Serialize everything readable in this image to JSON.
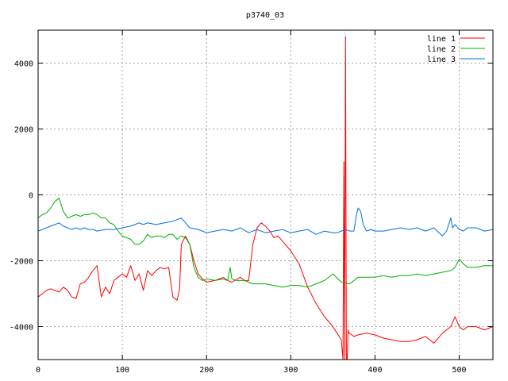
{
  "chart_data": {
    "type": "line",
    "title": "p3740_03",
    "xlabel": "",
    "ylabel": "",
    "xlim": [
      0,
      540
    ],
    "ylim": [
      -5000,
      5000
    ],
    "xticks": [
      0,
      100,
      200,
      300,
      400,
      500
    ],
    "yticks": [
      -4000,
      -2000,
      0,
      2000,
      4000
    ],
    "grid": true,
    "legend_position": "top-right",
    "series": [
      {
        "name": "line 1",
        "color": "#ff0000",
        "x": [
          0,
          5,
          10,
          15,
          20,
          25,
          30,
          35,
          40,
          45,
          50,
          55,
          60,
          65,
          70,
          75,
          80,
          85,
          90,
          95,
          100,
          105,
          110,
          115,
          120,
          125,
          130,
          135,
          140,
          145,
          150,
          155,
          160,
          165,
          168,
          170,
          172,
          175,
          180,
          185,
          190,
          195,
          200,
          210,
          220,
          230,
          240,
          245,
          250,
          255,
          260,
          265,
          270,
          275,
          280,
          285,
          290,
          300,
          310,
          320,
          330,
          340,
          350,
          355,
          360,
          362,
          363,
          364,
          365,
          366,
          367,
          368,
          369,
          370,
          375,
          380,
          390,
          400,
          410,
          420,
          430,
          440,
          450,
          460,
          470,
          480,
          490,
          495,
          500,
          505,
          510,
          520,
          530,
          540
        ],
        "y": [
          -3100,
          -3000,
          -2900,
          -2850,
          -2900,
          -2950,
          -2800,
          -2900,
          -3100,
          -3150,
          -2700,
          -2650,
          -2500,
          -2300,
          -2150,
          -3100,
          -2800,
          -3000,
          -2600,
          -2500,
          -2400,
          -2500,
          -2150,
          -2600,
          -2400,
          -2900,
          -2300,
          -2450,
          -2300,
          -2200,
          -2250,
          -2200,
          -3100,
          -3200,
          -2850,
          -1500,
          -1400,
          -1250,
          -1500,
          -2000,
          -2400,
          -2550,
          -2650,
          -2600,
          -2550,
          -2650,
          -2500,
          -2600,
          -2600,
          -1500,
          -1000,
          -850,
          -950,
          -1100,
          -1300,
          -1250,
          -1400,
          -1700,
          -2100,
          -2800,
          -3300,
          -3700,
          -4000,
          -4200,
          -4400,
          -5000,
          1000,
          -5000,
          4800,
          -5000,
          -5000,
          -4100,
          -4200,
          -4200,
          -4300,
          -4250,
          -4200,
          -4250,
          -4350,
          -4400,
          -4450,
          -4450,
          -4400,
          -4300,
          -4500,
          -4200,
          -4000,
          -3700,
          -4000,
          -4100,
          -4000,
          -4000,
          -4100,
          -4000
        ]
      },
      {
        "name": "line 2",
        "color": "#00b000",
        "x": [
          0,
          5,
          10,
          15,
          20,
          25,
          30,
          35,
          40,
          45,
          50,
          55,
          60,
          65,
          70,
          75,
          80,
          85,
          90,
          95,
          100,
          105,
          110,
          115,
          120,
          125,
          130,
          135,
          140,
          145,
          150,
          155,
          160,
          165,
          170,
          175,
          180,
          185,
          190,
          195,
          200,
          210,
          220,
          225,
          228,
          230,
          235,
          240,
          245,
          250,
          255,
          260,
          270,
          280,
          290,
          300,
          310,
          320,
          330,
          340,
          350,
          360,
          370,
          380,
          390,
          400,
          410,
          420,
          430,
          440,
          450,
          460,
          470,
          480,
          490,
          495,
          500,
          505,
          510,
          520,
          530,
          540
        ],
        "y": [
          -700,
          -600,
          -550,
          -400,
          -200,
          -100,
          -500,
          -700,
          -650,
          -600,
          -650,
          -600,
          -600,
          -550,
          -600,
          -700,
          -700,
          -850,
          -900,
          -1100,
          -1250,
          -1300,
          -1350,
          -1500,
          -1500,
          -1400,
          -1200,
          -1300,
          -1250,
          -1250,
          -1300,
          -1200,
          -1200,
          -1350,
          -1250,
          -1300,
          -1500,
          -2200,
          -2500,
          -2600,
          -2550,
          -2600,
          -2500,
          -2600,
          -2200,
          -2550,
          -2600,
          -2600,
          -2600,
          -2650,
          -2700,
          -2700,
          -2700,
          -2750,
          -2800,
          -2750,
          -2750,
          -2800,
          -2700,
          -2600,
          -2400,
          -2650,
          -2700,
          -2500,
          -2500,
          -2500,
          -2450,
          -2500,
          -2450,
          -2450,
          -2400,
          -2450,
          -2400,
          -2350,
          -2300,
          -2200,
          -1950,
          -2100,
          -2200,
          -2200,
          -2150,
          -2150
        ]
      },
      {
        "name": "line 3",
        "color": "#0070e0",
        "x": [
          0,
          5,
          10,
          15,
          20,
          25,
          30,
          35,
          40,
          45,
          50,
          55,
          60,
          65,
          70,
          80,
          90,
          100,
          110,
          115,
          120,
          125,
          130,
          140,
          150,
          160,
          170,
          180,
          190,
          200,
          210,
          220,
          230,
          240,
          250,
          260,
          270,
          280,
          290,
          300,
          310,
          320,
          330,
          340,
          350,
          355,
          360,
          365,
          370,
          375,
          378,
          380,
          383,
          386,
          390,
          395,
          400,
          410,
          420,
          430,
          440,
          450,
          460,
          470,
          480,
          485,
          490,
          492,
          495,
          500,
          505,
          510,
          520,
          530,
          540
        ],
        "y": [
          -1100,
          -1050,
          -1000,
          -950,
          -900,
          -850,
          -950,
          -1000,
          -1050,
          -1000,
          -1050,
          -1000,
          -1050,
          -1050,
          -1100,
          -1050,
          -1050,
          -1000,
          -950,
          -900,
          -850,
          -900,
          -850,
          -900,
          -850,
          -800,
          -700,
          -1000,
          -1050,
          -1150,
          -1100,
          -1050,
          -1100,
          -1000,
          -1150,
          -1050,
          -1150,
          -1100,
          -1050,
          -1150,
          -1100,
          -1050,
          -1200,
          -1100,
          -1150,
          -1150,
          -1100,
          -1050,
          -1100,
          -1100,
          -600,
          -400,
          -500,
          -900,
          -1100,
          -1050,
          -1100,
          -1100,
          -1050,
          -1000,
          -1050,
          -1000,
          -1100,
          -1000,
          -1250,
          -1100,
          -700,
          -1000,
          -900,
          -1050,
          -1100,
          -1000,
          -1000,
          -1100,
          -1050
        ]
      }
    ]
  }
}
